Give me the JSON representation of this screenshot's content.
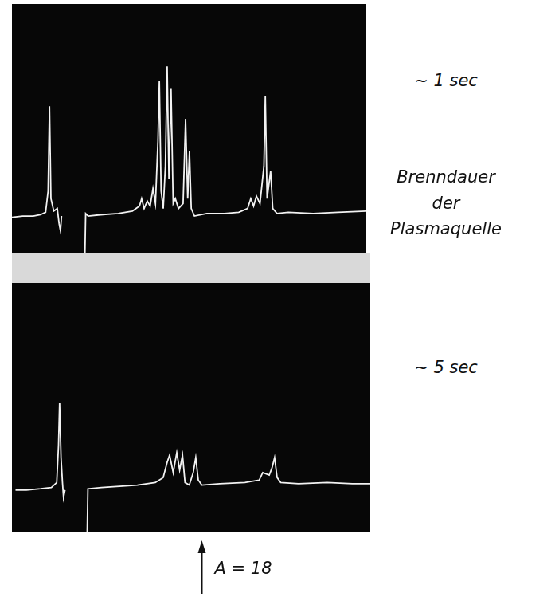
{
  "chart_data": [
    {
      "type": "line",
      "color": "#f2f2f2",
      "grid": false,
      "tick_labels": false,
      "xlim": [
        0,
        100
      ],
      "ylim": [
        0,
        100
      ],
      "annotations": [
        {
          "text": "~ 1 sec"
        }
      ],
      "x": [
        0,
        3,
        6,
        8,
        9.5,
        10.2,
        10.6,
        11.0,
        11.8,
        12.8,
        13.3,
        13.7,
        14.0,
        17,
        20.6,
        20.8,
        21.5,
        25,
        30,
        34,
        36,
        36.6,
        37.3,
        38.2,
        39,
        39.8,
        40.5,
        41.2,
        41.6,
        42.1,
        42.7,
        43.3,
        43.8,
        44.3,
        44.9,
        45.5,
        46.1,
        47,
        48.3,
        49,
        49.6,
        50.1,
        50.6,
        51.5,
        55,
        60,
        64,
        66.5,
        67.4,
        68.2,
        69,
        70,
        71.1,
        71.5,
        72,
        73,
        73.6,
        74.8,
        78,
        85,
        92,
        100
      ],
      "values": [
        14.5,
        15,
        15,
        15.5,
        16.5,
        25,
        59,
        22,
        17,
        18,
        12,
        9,
        15,
        null,
        0,
        16,
        15,
        15.5,
        16,
        17,
        19,
        22,
        18,
        21,
        19,
        26,
        20,
        45,
        69,
        25,
        18,
        35,
        75,
        30,
        66,
        20,
        22,
        18,
        20,
        54,
        22,
        41,
        18,
        15,
        16,
        16,
        16.5,
        18,
        22,
        19,
        23,
        20,
        35,
        63,
        22,
        33,
        18,
        16,
        16.5,
        16,
        16.5,
        17
      ]
    },
    {
      "type": "line",
      "color": "#f2f2f2",
      "grid": false,
      "tick_labels": false,
      "xlim": [
        0,
        100
      ],
      "ylim": [
        0,
        100
      ],
      "annotations": [
        {
          "text": "~ 5 sec"
        },
        {
          "text": "A = 18",
          "x": 53
        }
      ],
      "x": [
        1,
        4,
        8,
        11,
        12.5,
        13.0,
        13.3,
        13.7,
        14.1,
        14.4,
        14.8,
        18,
        21.0,
        21.2,
        25,
        30,
        35,
        40,
        42.2,
        43.3,
        44,
        45,
        46,
        46.8,
        47.6,
        48.3,
        49.5,
        50.6,
        51.3,
        52,
        53,
        58,
        65,
        69,
        70,
        71.8,
        72.6,
        73.3,
        74,
        75,
        80,
        88,
        95,
        100
      ],
      "values": [
        17,
        17,
        17.5,
        18,
        20,
        35,
        52,
        30,
        20,
        14,
        17,
        null,
        0,
        17.5,
        18,
        18.5,
        19,
        20,
        22,
        28,
        31,
        24,
        32,
        25,
        31,
        20,
        19,
        24,
        30,
        21,
        19,
        19.5,
        20,
        21,
        24,
        23,
        26,
        30,
        22,
        20,
        19.5,
        20,
        19.5,
        19.5
      ]
    }
  ],
  "label": "Brenndauer der Plasmaquelle"
}
